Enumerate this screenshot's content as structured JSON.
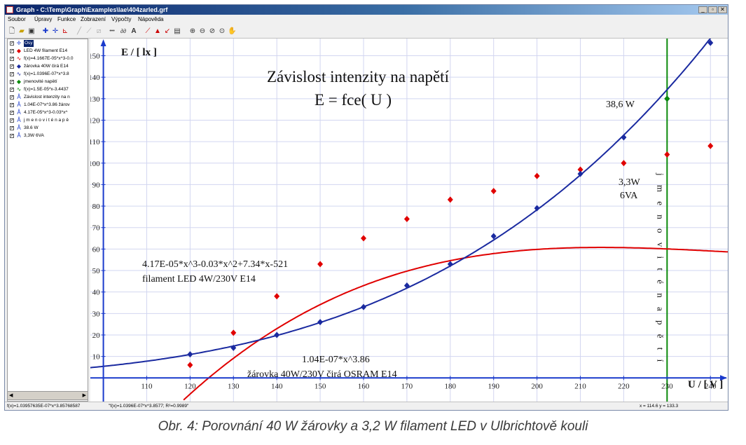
{
  "window": {
    "title": "Graph - C:\\Temp\\Graph\\Examples\\lae\\404zarled.grf",
    "controls": [
      "_",
      "▫",
      "✕"
    ]
  },
  "menu": [
    "Soubor",
    "Úpravy",
    "Funkce",
    "Zobrazení",
    "Výpočty",
    "Nápověda"
  ],
  "legend_panel": {
    "items": [
      {
        "label": "Osy",
        "icon": "axes-icon",
        "color": "#1a3acc",
        "selected": true
      },
      {
        "label": "LED 4W filament E14",
        "icon": "red-diamond-icon",
        "color": "#e00000"
      },
      {
        "label": "f(x)=4.1667E-05*x^3-0.0",
        "icon": "red-function-icon",
        "color": "#e00000"
      },
      {
        "label": "žárovka 40W čirá E14",
        "icon": "blue-diamond-icon",
        "color": "#1a2aa0"
      },
      {
        "label": "f(x)=1.0396E-07*x^3.8",
        "icon": "blue-function-icon",
        "color": "#1a2aa0"
      },
      {
        "label": "jmenovité napětí",
        "icon": "green-diamond-icon",
        "color": "#0a8a0a"
      },
      {
        "label": "f(x)=1.5E-05*x-3.4437",
        "icon": "green-function-icon",
        "color": "#0a8a0a"
      },
      {
        "label": "Závislost intenzity na n",
        "icon": "text-icon",
        "color": "#1a3acc"
      },
      {
        "label": "1.04E-07*x^3.86 žárov",
        "icon": "text-icon",
        "color": "#1a3acc"
      },
      {
        "label": "4.17E-05*x^3-0.03*x^",
        "icon": "text-icon",
        "color": "#1a3acc"
      },
      {
        "label": "j m e n o v i t é  n a p ě",
        "icon": "text-icon",
        "color": "#1a3acc"
      },
      {
        "label": "38.6 W",
        "icon": "text-icon",
        "color": "#1a3acc"
      },
      {
        "label": "3,3W 6VA",
        "icon": "text-icon",
        "color": "#1a3acc"
      }
    ]
  },
  "status": {
    "left": "f(x)=1.03957635E-07*x^3.85768587",
    "middle": "\"f(x)=1.0396E-07*x^3.8577; R²=0.9989\"",
    "coords": "x = 114.6   y = 133.3"
  },
  "caption": "Obr. 4: Porovnání 40 W žárovky a 3,2 W filament LED v Ulbrichtově kouli",
  "chart_data": {
    "type": "scatter",
    "title": "Závislost intenzity na napětí",
    "subtitle": "E = fce( U )",
    "xlabel": "U / [ V ]",
    "ylabel": "E / [ lx ]",
    "xlim": [
      97,
      244
    ],
    "ylim": [
      -11,
      158
    ],
    "x_ticks": [
      110,
      120,
      130,
      140,
      150,
      160,
      170,
      180,
      190,
      200,
      210,
      220,
      230,
      240
    ],
    "y_ticks": [
      10,
      20,
      30,
      40,
      50,
      60,
      70,
      80,
      90,
      100,
      110,
      120,
      130,
      140,
      150
    ],
    "grid": true,
    "series": [
      {
        "name": "LED 4W filament E14",
        "color": "#e00000",
        "x": [
          120,
          130,
          140,
          150,
          160,
          170,
          180,
          190,
          200,
          210,
          220,
          230,
          240
        ],
        "y": [
          6,
          21,
          38,
          53,
          65,
          74,
          83,
          87,
          94,
          97,
          100,
          104,
          108
        ]
      },
      {
        "name": "žárovka 40W čirá E14",
        "color": "#1a2aa0",
        "x": [
          120,
          130,
          140,
          150,
          160,
          170,
          180,
          190,
          200,
          210,
          220,
          230,
          240
        ],
        "y": [
          11,
          14,
          20,
          26,
          33,
          43,
          53,
          66,
          79,
          95,
          112,
          130,
          156
        ]
      },
      {
        "name": "jmenovité napětí",
        "color": "#0a8a0a",
        "x": [
          230
        ],
        "y": [
          130
        ]
      }
    ],
    "fits": [
      {
        "label": "4.17E-05*x^3-0.03*x^2+7.34*x-521",
        "color": "#e00000",
        "coeffs": [
          4.16667e-05,
          -0.0305,
          7.335,
          -520.5
        ]
      },
      {
        "label": "1.04E-07*x^3.86",
        "color": "#1a2aa0",
        "a": 1.03957635e-07,
        "b": 3.85768587
      }
    ],
    "vertical_line": {
      "x": 230,
      "color": "#0a8a0a",
      "label": "j m e n o v i t é   n a p ě t í"
    },
    "annotations": [
      {
        "line1": "4.17E-05*x^3-0.03*x^2+7.34*x-521",
        "line2": "filament LED 4W/230V E14"
      },
      {
        "line1": "1.04E-07*x^3.86",
        "line2": "žárovka 40W/230V čirá OSRAM E14"
      },
      {
        "text": "38,6 W"
      },
      {
        "line1": "3,3W",
        "line2": "6VA"
      }
    ]
  }
}
